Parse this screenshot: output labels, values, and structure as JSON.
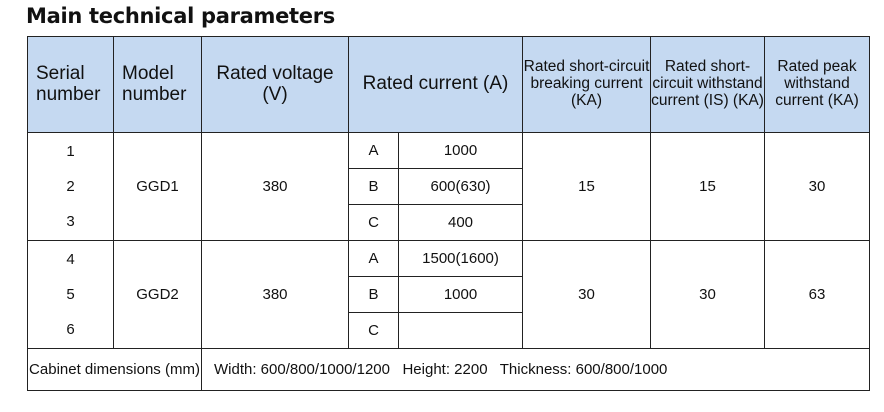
{
  "title": "Main technical parameters",
  "headers": {
    "serial": "Serial number",
    "model": "Model number",
    "voltage": "Rated voltage (V)",
    "current": "Rated current (A)",
    "breaking": "Rated short-circuit breaking current (KA)",
    "withstand": "Rated short-circuit withstand current (IS) (KA)",
    "peak": "Rated peak withstand current (KA)"
  },
  "groups": [
    {
      "serials": [
        "1",
        "2",
        "3"
      ],
      "model": "GGD1",
      "voltage": "380",
      "rows": [
        {
          "phase": "A",
          "current": "1000"
        },
        {
          "phase": "B",
          "current": "600(630)"
        },
        {
          "phase": "C",
          "current": "400"
        }
      ],
      "breaking": "15",
      "withstand": "15",
      "peak": "30"
    },
    {
      "serials": [
        "4",
        "5",
        "6"
      ],
      "model": "GGD2",
      "voltage": "380",
      "rows": [
        {
          "phase": "A",
          "current": "1500(1600)"
        },
        {
          "phase": "B",
          "current": "1000"
        },
        {
          "phase": "C",
          "current": ""
        }
      ],
      "breaking": "30",
      "withstand": "30",
      "peak": "63"
    }
  ],
  "dimensions": {
    "label": "Cabinet dimensions (mm)",
    "value": "Width: 600/800/1000/1200   Height: 2200   Thickness: 600/800/1000"
  }
}
